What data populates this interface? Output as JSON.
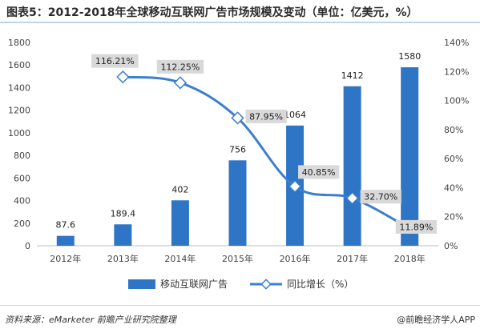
{
  "title": "图表5：2012-2018年全球移动互联网广告市场规模及变动（单位：亿美元，%）",
  "source": "资料来源：eMarketer 前瞻产业研究院整理",
  "brand": "@前瞻经济学人APP",
  "colors": {
    "bar": "#2e75c6",
    "line": "#3a7fd0",
    "label_bg": "#d9d9d9",
    "rule": "#bcd3e8"
  },
  "chart_data": {
    "type": "bar",
    "categories": [
      "2012年",
      "2013年",
      "2014年",
      "2015年",
      "2016年",
      "2017年",
      "2018年"
    ],
    "series": [
      {
        "name": "移动互联网广告",
        "type": "bar",
        "axis": "left",
        "values": [
          87.6,
          189.4,
          402,
          756,
          1064,
          1412,
          1580
        ],
        "labels": [
          "87.6",
          "189.4",
          "402",
          "756",
          "1064",
          "1412",
          "1580"
        ]
      },
      {
        "name": "同比增长（%）",
        "type": "line",
        "axis": "right",
        "values": [
          null,
          116.21,
          112.25,
          87.95,
          40.85,
          32.7,
          11.89
        ],
        "labels": [
          "",
          "116.21%",
          "112.25%",
          "87.95%",
          "40.85%",
          "32.70%",
          "11.89%"
        ]
      }
    ],
    "yleft": {
      "lim": [
        0,
        1800
      ],
      "ticks": [
        "0",
        "200",
        "400",
        "600",
        "800",
        "1000",
        "1200",
        "1400",
        "1600",
        "1800"
      ]
    },
    "yright": {
      "lim": [
        0,
        140
      ],
      "ticks": [
        "0%",
        "20%",
        "40%",
        "60%",
        "80%",
        "100%",
        "120%",
        "140%"
      ]
    },
    "legend_position": "bottom",
    "grid": false
  }
}
